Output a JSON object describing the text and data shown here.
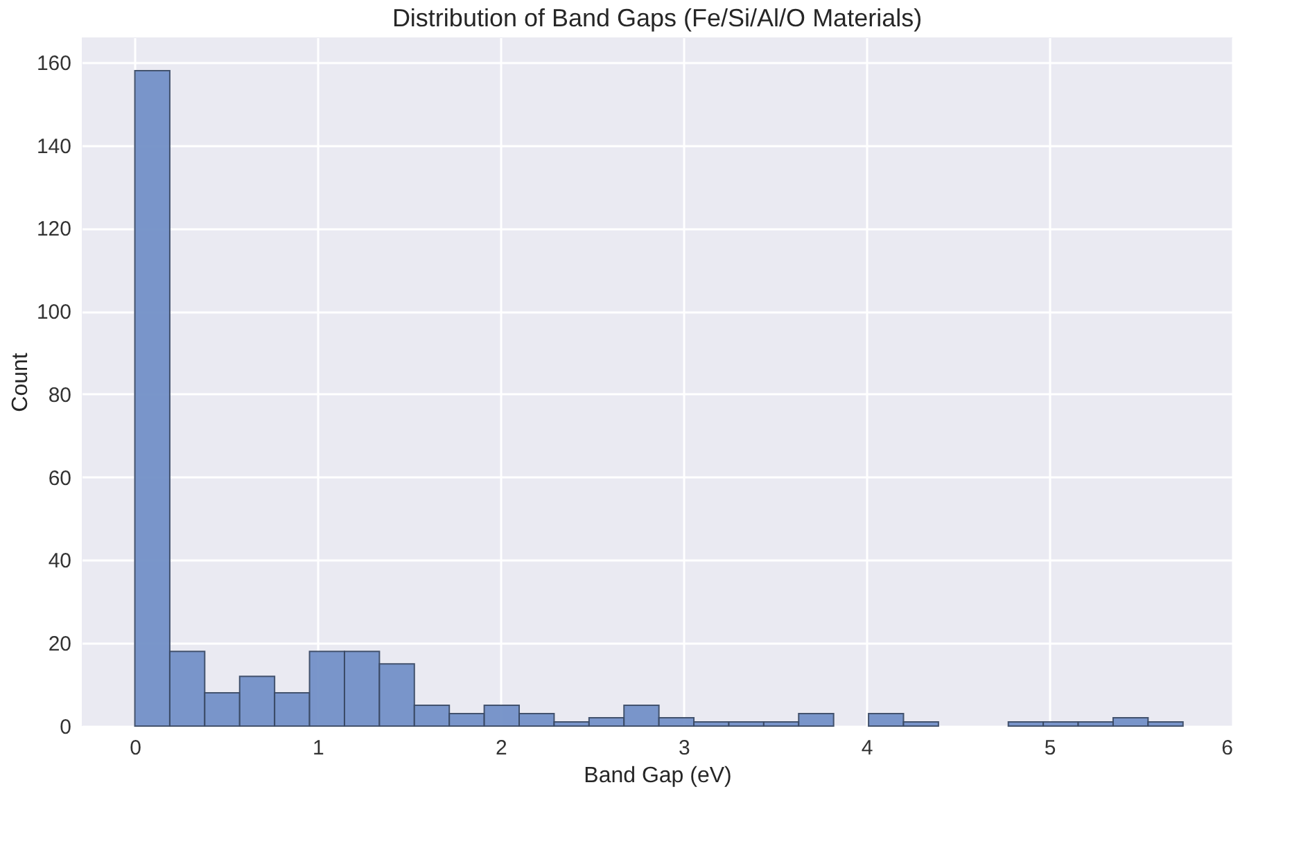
{
  "chart_data": {
    "type": "histogram",
    "title": "Distribution of Band Gaps (Fe/Si/Al/O Materials)",
    "xlabel": "Band Gap (eV)",
    "ylabel": "Count",
    "bins": [
      0,
      0.191,
      0.382,
      0.573,
      0.764,
      0.955,
      1.146,
      1.337,
      1.528,
      1.719,
      1.91,
      2.101,
      2.292,
      2.483,
      2.674,
      2.865,
      3.056,
      3.247,
      3.438,
      3.629,
      3.82,
      4.011,
      4.202,
      4.393,
      4.584,
      4.775,
      4.966,
      5.157,
      5.348,
      5.539,
      5.73
    ],
    "values": [
      158,
      18,
      8,
      12,
      8,
      18,
      18,
      15,
      5,
      3,
      5,
      3,
      1,
      2,
      5,
      2,
      1,
      1,
      1,
      3,
      0,
      3,
      1,
      0,
      0,
      1,
      1,
      1,
      2,
      1
    ],
    "color": "#7391c8",
    "xlim": [
      -0.29,
      6.0
    ],
    "xticks": [
      0,
      1,
      2,
      3,
      4,
      5,
      6
    ],
    "ylim": [
      0,
      166
    ],
    "yticks": [
      0,
      20,
      40,
      60,
      80,
      100,
      120,
      140,
      160
    ],
    "grid": true
  }
}
